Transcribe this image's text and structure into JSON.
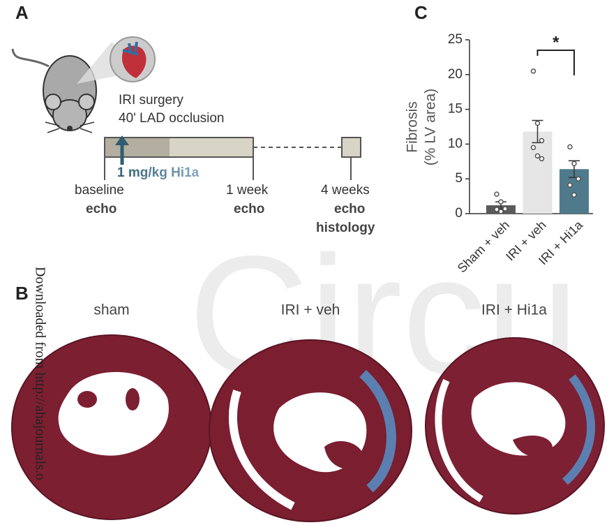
{
  "panel_a": {
    "label": "A",
    "surgery": "IRI surgery",
    "occlusion": "40' LAD occlusion",
    "dose": "1 mg/kg Hi1a",
    "timepoints": [
      {
        "time": "baseline",
        "measure": [
          "echo"
        ]
      },
      {
        "time": "1 week",
        "measure": [
          "echo"
        ]
      },
      {
        "time": "4 weeks",
        "measure": [
          "echo",
          "histology"
        ]
      }
    ]
  },
  "panel_b": {
    "label": "B",
    "groups": [
      "sham",
      "IRI + veh",
      "IRI + Hi1a"
    ]
  },
  "watermark": {
    "side": "Downloaded from http://ahajournals.o",
    "background": "Circu"
  },
  "chart_data": {
    "type": "bar",
    "panel_label": "C",
    "ylabel": [
      "Fibrosis",
      "(% LV area)"
    ],
    "categories": [
      "Sham + veh",
      "IRI + veh",
      "IRI + Hi1a"
    ],
    "values": [
      1.2,
      11.8,
      6.4
    ],
    "errors": [
      0.5,
      1.6,
      1.2
    ],
    "colors": [
      "#5a5a5a",
      "#e6e6e6",
      "#4f7a8c"
    ],
    "points": [
      [
        2.8,
        1.7,
        0.7,
        0.6,
        0.3
      ],
      [
        20.5,
        13.0,
        10.5,
        9.5,
        8.3,
        7.9
      ],
      [
        9.6,
        7.2,
        5.0,
        4.1,
        2.7
      ]
    ],
    "annotation": "*",
    "ylim": [
      0,
      25
    ],
    "yticks": [
      0,
      5,
      10,
      15,
      20,
      25
    ]
  }
}
